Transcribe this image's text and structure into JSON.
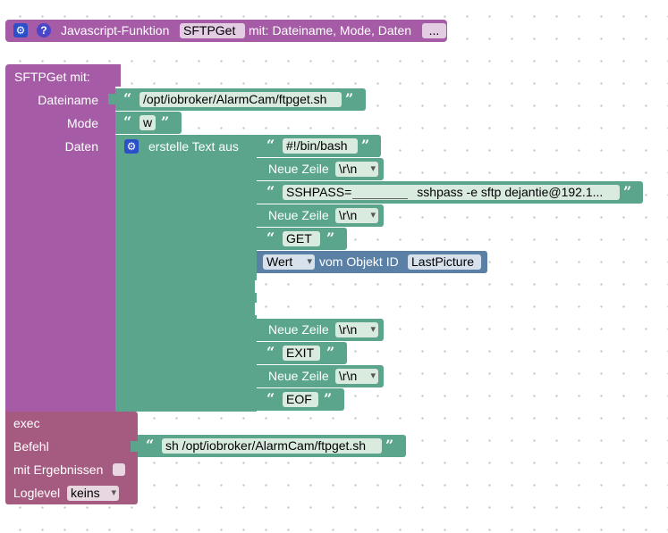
{
  "header_block": {
    "prefix": "Javascript-Funktion",
    "function_name": "SFTPGet",
    "params_text": "mit: Dateiname, Mode, Daten",
    "more_label": "..."
  },
  "call_block": {
    "title": "SFTPGet  mit:",
    "param_labels": [
      "Dateiname",
      "Mode",
      "Daten"
    ],
    "dateiname_value": "/opt/iobroker/AlarmCam/ftpget.sh",
    "mode_value": "w"
  },
  "create_text": {
    "label": "erstelle Text aus",
    "items": {
      "shebang": "#!/bin/bash",
      "newline_label": "Neue Zeile",
      "newline_value": "\\r\\n",
      "sshpass_prefix": "SSHPASS=",
      "sshpass_rest": "sshpass -e sftp  dejantie@192.1...",
      "get": "GET",
      "exit": "EXIT",
      "eof": "EOF"
    },
    "value_block": {
      "dropdown": "Wert",
      "text": "vom Objekt ID",
      "object_id": "LastPicture"
    }
  },
  "exec_block": {
    "title": "exec",
    "befehl_label": "Befehl",
    "befehl_value": "sh /opt/iobroker/AlarmCam/ftpget.sh",
    "results_label": "mit Ergebnissen",
    "loglevel_label": "Loglevel",
    "loglevel_value": "keins"
  },
  "icons": {
    "gear": "gear-icon",
    "help": "help-icon",
    "quote_open": "“",
    "quote_close": "”"
  },
  "colors": {
    "purple": "#a55ba5",
    "green": "#5ba58c",
    "blue": "#5b80a5",
    "exec": "#a55b80"
  }
}
